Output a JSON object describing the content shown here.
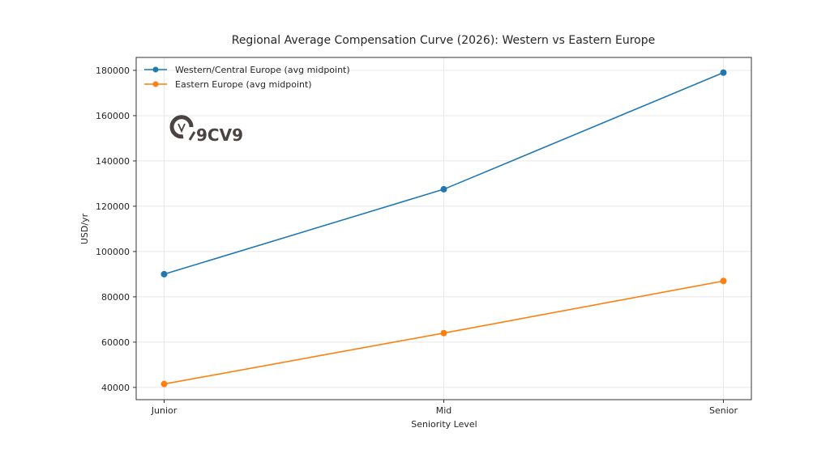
{
  "chart_data": {
    "type": "line",
    "title": "Regional Average Compensation Curve (2026): Western vs Eastern Europe",
    "xlabel": "Seniority Level",
    "ylabel": "USD/yr",
    "categories": [
      "Junior",
      "Mid",
      "Senior"
    ],
    "series": [
      {
        "name": "Western/Central Europe (avg midpoint)",
        "color": "#1f77b4",
        "values": [
          90000,
          127500,
          179000
        ]
      },
      {
        "name": "Eastern Europe (avg midpoint)",
        "color": "#ff7f0e",
        "values": [
          41500,
          64000,
          87000
        ]
      }
    ],
    "yticks": [
      40000,
      60000,
      80000,
      100000,
      120000,
      140000,
      160000,
      180000
    ],
    "ylim": [
      34600,
      185700
    ],
    "grid": true,
    "legend_position": "upper left",
    "markers": "circle"
  },
  "watermark": {
    "text": "9CV9"
  }
}
